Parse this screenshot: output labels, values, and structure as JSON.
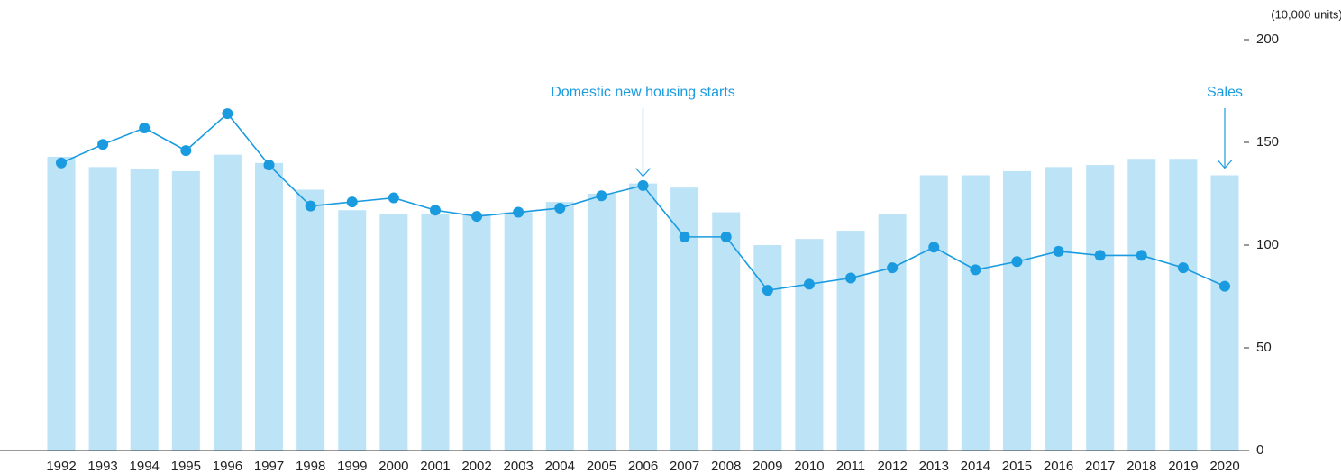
{
  "chart_data": {
    "type": "bar_line",
    "unit_label": "(10,000 units)",
    "categories": [
      "1992",
      "1993",
      "1994",
      "1995",
      "1996",
      "1997",
      "1998",
      "1999",
      "2000",
      "2001",
      "2002",
      "2003",
      "2004",
      "2005",
      "2006",
      "2007",
      "2008",
      "2009",
      "2010",
      "2011",
      "2012",
      "2013",
      "2014",
      "2015",
      "2016",
      "2017",
      "2018",
      "2019",
      "2020"
    ],
    "series": [
      {
        "name": "Sales",
        "type": "bar",
        "color": "#bde3f7",
        "annotate_at": "2020",
        "values": [
          143,
          138,
          137,
          136,
          144,
          140,
          127,
          117,
          115,
          115,
          115,
          116,
          121,
          125,
          130,
          128,
          116,
          100,
          103,
          107,
          115,
          134,
          134,
          136,
          138,
          139,
          142,
          142,
          134
        ]
      },
      {
        "name": "Domestic new housing starts",
        "type": "line",
        "color": "#1a9be0",
        "annotate_at": "2006",
        "values": [
          140,
          149,
          157,
          146,
          164,
          139,
          119,
          121,
          123,
          117,
          114,
          116,
          118,
          124,
          129,
          104,
          104,
          78,
          81,
          84,
          89,
          99,
          88,
          92,
          97,
          95,
          95,
          89,
          80
        ]
      }
    ],
    "ylim": [
      0,
      200
    ],
    "yticks": [
      0,
      50,
      100,
      150,
      200
    ],
    "axis_side": "right",
    "grid": false
  }
}
